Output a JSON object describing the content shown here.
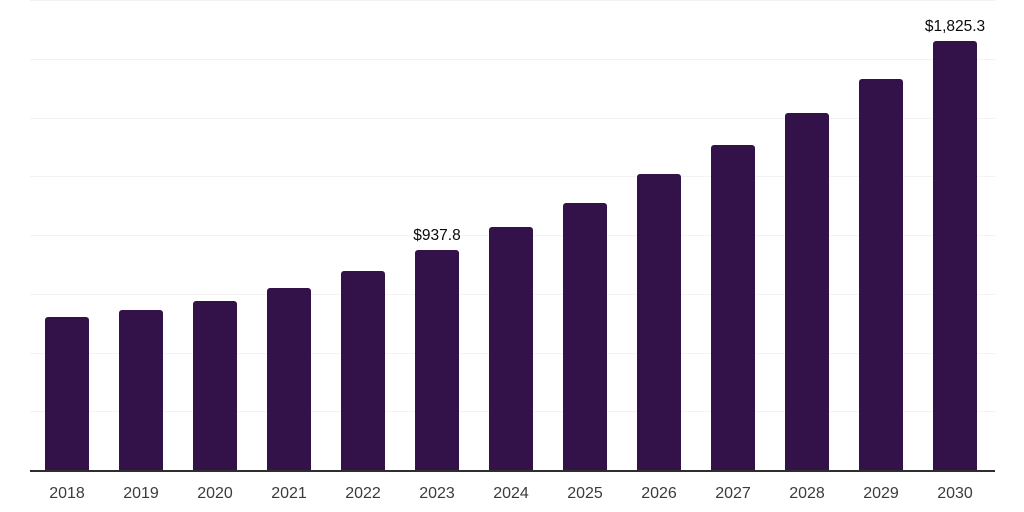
{
  "chart_data": {
    "type": "bar",
    "title": "",
    "xlabel": "",
    "ylabel": "",
    "categories": [
      "2018",
      "2019",
      "2020",
      "2021",
      "2022",
      "2023",
      "2024",
      "2025",
      "2026",
      "2027",
      "2028",
      "2029",
      "2030"
    ],
    "values": [
      650,
      680,
      718,
      773,
      845,
      937.8,
      1032,
      1138,
      1261,
      1384,
      1520,
      1665,
      1825.3
    ],
    "data_labels": {
      "2023": "$937.8",
      "2030": "$1,825.3"
    },
    "ylim": [
      0,
      2000
    ],
    "gridline_interval": 250,
    "grid": "horizontal",
    "legend": "none",
    "colors": {
      "bar": "#331149",
      "axis_line": "#2e2e2e",
      "gridline": "#f3f3f3",
      "tick_label": "#3b3b3b",
      "data_label": "#0a0a0a",
      "background": "#ffffff"
    }
  }
}
